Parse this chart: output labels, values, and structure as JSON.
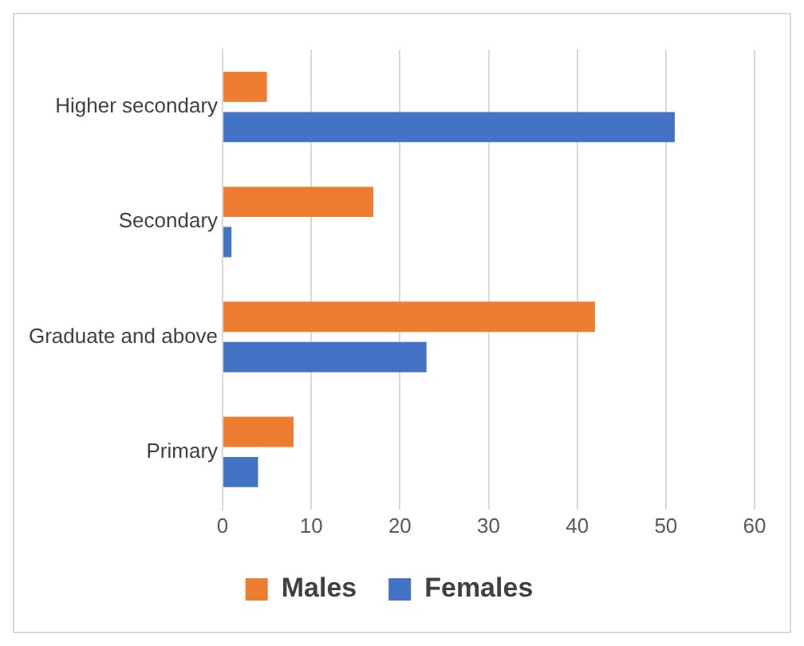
{
  "chart_data": {
    "type": "bar",
    "orientation": "horizontal",
    "categories": [
      "Higher secondary",
      "Secondary",
      "Graduate and above",
      "Primary"
    ],
    "series": [
      {
        "name": "Males",
        "color": "#ed7d31",
        "values": [
          5,
          17,
          42,
          8
        ]
      },
      {
        "name": "Females",
        "color": "#4472c4",
        "values": [
          51,
          1,
          23,
          4
        ]
      }
    ],
    "xlim": [
      0,
      60
    ],
    "xticks": [
      0,
      10,
      20,
      30,
      40,
      50,
      60
    ],
    "grid": "x",
    "legend": "bottom"
  }
}
